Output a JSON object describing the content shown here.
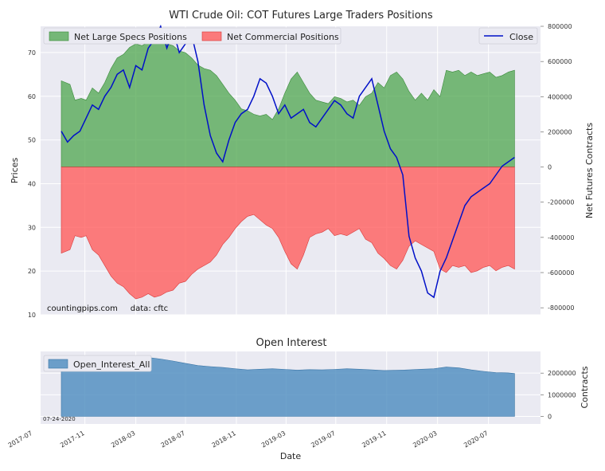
{
  "colors": {
    "panel_bg": "#eaeaf2",
    "grid": "#ffffff",
    "specs_fill": "#4da64d",
    "comm_fill": "#ff5a5a",
    "close_line": "#0010c8",
    "oi_fill": "#4b8bbe"
  },
  "chart_data": [
    {
      "type": "area",
      "title": "WTI Crude Oil: COT Futures Large Traders Positions",
      "ylabel": "Prices",
      "y2label": "Net Futures Contracts",
      "ylim": [
        10,
        76
      ],
      "y2lim": [
        -840000,
        800000
      ],
      "y_ticks": [
        10,
        20,
        30,
        40,
        50,
        60,
        70
      ],
      "y2_ticks": [
        -800000,
        -600000,
        -400000,
        -200000,
        0,
        200000,
        400000,
        600000,
        800000
      ],
      "x_range": [
        0,
        37.5
      ],
      "legend": {
        "specs": "Net Large Specs Positions",
        "comm": "Net Commercial Positions",
        "close": "Close"
      },
      "watermark": "countingpips.com     data: cftc",
      "series": [
        {
          "name": "Net Large Specs Positions",
          "axis": "right",
          "x": [
            0,
            0.7,
            1.1,
            1.6,
            2,
            2.5,
            3,
            3.5,
            4,
            4.5,
            5,
            5.5,
            6,
            6.5,
            7,
            7.5,
            8,
            8.5,
            9,
            9.5,
            10,
            10.5,
            11,
            11.5,
            12,
            12.5,
            13,
            13.5,
            14,
            14.5,
            15,
            15.5,
            16,
            16.5,
            17,
            17.5,
            18,
            18.5,
            19,
            19.5,
            20,
            20.5,
            21,
            21.5,
            22,
            22.5,
            23,
            23.5,
            24,
            24.5,
            25,
            25.5,
            26,
            26.5,
            27,
            27.5,
            28,
            28.5,
            29,
            29.5,
            30,
            30.5,
            31,
            31.5,
            32,
            32.5,
            33,
            33.5,
            34,
            34.5,
            35,
            35.5,
            36,
            36.5
          ],
          "values": [
            490000,
            470000,
            380000,
            390000,
            380000,
            450000,
            420000,
            480000,
            560000,
            620000,
            640000,
            680000,
            700000,
            690000,
            710000,
            720000,
            710000,
            700000,
            690000,
            660000,
            650000,
            620000,
            580000,
            560000,
            550000,
            520000,
            470000,
            420000,
            380000,
            330000,
            320000,
            300000,
            290000,
            300000,
            270000,
            330000,
            420000,
            500000,
            540000,
            480000,
            420000,
            380000,
            370000,
            360000,
            400000,
            390000,
            370000,
            380000,
            350000,
            400000,
            420000,
            480000,
            450000,
            520000,
            540000,
            500000,
            430000,
            380000,
            420000,
            380000,
            440000,
            400000,
            550000,
            540000,
            550000,
            520000,
            540000,
            520000,
            530000,
            540000,
            510000,
            520000,
            540000,
            550000
          ]
        },
        {
          "name": "Net Commercial Positions",
          "axis": "right",
          "x": [
            0,
            0.7,
            1.1,
            1.6,
            2,
            2.5,
            3,
            3.5,
            4,
            4.5,
            5,
            5.5,
            6,
            6.5,
            7,
            7.5,
            8,
            8.5,
            9,
            9.5,
            10,
            10.5,
            11,
            11.5,
            12,
            12.5,
            13,
            13.5,
            14,
            14.5,
            15,
            15.5,
            16,
            16.5,
            17,
            17.5,
            18,
            18.5,
            19,
            19.5,
            20,
            20.5,
            21,
            21.5,
            22,
            22.5,
            23,
            23.5,
            24,
            24.5,
            25,
            25.5,
            26,
            26.5,
            27,
            27.5,
            28,
            28.5,
            29,
            29.5,
            30,
            30.5,
            31,
            31.5,
            32,
            32.5,
            33,
            33.5,
            34,
            34.5,
            35,
            35.5,
            36,
            36.5
          ],
          "values": [
            -490000,
            -470000,
            -390000,
            -400000,
            -390000,
            -470000,
            -500000,
            -560000,
            -620000,
            -660000,
            -680000,
            -720000,
            -750000,
            -740000,
            -720000,
            -740000,
            -730000,
            -710000,
            -700000,
            -660000,
            -650000,
            -610000,
            -580000,
            -560000,
            -540000,
            -500000,
            -440000,
            -400000,
            -350000,
            -310000,
            -280000,
            -270000,
            -300000,
            -330000,
            -350000,
            -400000,
            -480000,
            -550000,
            -580000,
            -500000,
            -400000,
            -380000,
            -370000,
            -350000,
            -390000,
            -380000,
            -390000,
            -370000,
            -350000,
            -410000,
            -430000,
            -490000,
            -520000,
            -560000,
            -580000,
            -530000,
            -450000,
            -420000,
            -440000,
            -460000,
            -480000,
            -580000,
            -600000,
            -560000,
            -570000,
            -560000,
            -600000,
            -590000,
            -570000,
            -560000,
            -590000,
            -570000,
            -560000,
            -580000
          ]
        },
        {
          "name": "Close",
          "axis": "left",
          "x": [
            0,
            0.5,
            1,
            1.5,
            2,
            2.5,
            3,
            3.5,
            4,
            4.5,
            5,
            5.5,
            6,
            6.5,
            7,
            7.5,
            8,
            8.5,
            9,
            9.5,
            10,
            10.5,
            11,
            11.5,
            12,
            12.5,
            13,
            13.5,
            14,
            14.5,
            15,
            15.5,
            16,
            16.5,
            17,
            17.5,
            18,
            18.5,
            19,
            19.5,
            20,
            20.5,
            21,
            21.5,
            22,
            22.5,
            23,
            23.5,
            24,
            24.5,
            25,
            25.5,
            26,
            26.5,
            27,
            27.5,
            28,
            28.5,
            29,
            29.5,
            30,
            30.5,
            31,
            31.5,
            32,
            32.5,
            33,
            33.5,
            34,
            34.5,
            35,
            35.5,
            36,
            36.5
          ],
          "values": [
            52,
            49.5,
            51,
            52,
            55,
            58,
            57,
            60,
            62,
            65,
            66,
            62,
            67,
            66,
            71,
            73,
            78,
            71,
            75,
            70,
            72,
            74,
            68,
            58,
            51,
            47,
            45,
            50,
            54,
            56,
            57,
            60,
            64,
            63,
            60,
            56,
            58,
            55,
            56,
            57,
            54,
            53,
            55,
            57,
            59,
            58,
            56,
            55,
            60,
            62,
            64,
            58,
            52,
            48,
            46,
            42,
            28,
            23,
            20,
            15,
            14,
            20,
            23,
            27,
            31,
            35,
            37,
            38,
            39,
            40,
            42,
            44,
            45,
            46
          ]
        }
      ]
    },
    {
      "type": "area",
      "title": "Open Interest",
      "ylabel": "Contracts",
      "ylim": [
        -350000,
        3000000
      ],
      "y_ticks": [
        0,
        1000000,
        2000000
      ],
      "x_ticks": [
        "2017-07",
        "2017-11",
        "2018-03",
        "2018-07",
        "2018-11",
        "2019-03",
        "2019-07",
        "2019-11",
        "2020-03",
        "2020-07"
      ],
      "x_tick_pos": [
        -2.3,
        1.9,
        6.0,
        10.0,
        14.1,
        18.1,
        22.1,
        26.2,
        30.3,
        34.4
      ],
      "x_range": [
        -2.3,
        37.5
      ],
      "xlabel": "Date",
      "legend": "Open_Interest_All",
      "date_note": "07-24-2020",
      "x": [
        0,
        1,
        2,
        3,
        4,
        5,
        6,
        7,
        8,
        9,
        10,
        11,
        12,
        13,
        14,
        15,
        16,
        17,
        18,
        19,
        20,
        21,
        22,
        23,
        24,
        25,
        26,
        27,
        28,
        29,
        30,
        31,
        32,
        33,
        34,
        35,
        36,
        36.5
      ],
      "values": [
        2350000,
        2420000,
        2450000,
        2500000,
        2520000,
        2580000,
        2620000,
        2720000,
        2650000,
        2560000,
        2450000,
        2350000,
        2300000,
        2260000,
        2200000,
        2150000,
        2180000,
        2200000,
        2170000,
        2140000,
        2160000,
        2150000,
        2170000,
        2200000,
        2180000,
        2150000,
        2120000,
        2130000,
        2150000,
        2180000,
        2200000,
        2280000,
        2240000,
        2150000,
        2080000,
        2020000,
        2010000,
        1980000
      ]
    }
  ]
}
